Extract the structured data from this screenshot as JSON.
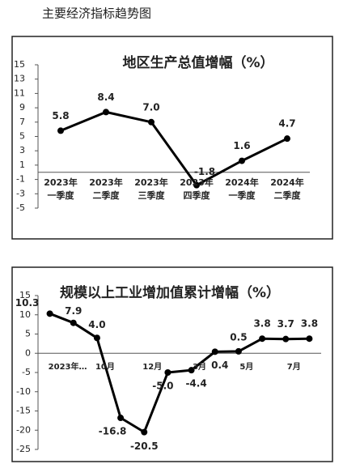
{
  "header": {
    "title": "主要经济指标趋势图"
  },
  "chart_data": [
    {
      "type": "line",
      "title": "地区生产总值增幅（%）",
      "categories": [
        [
          "2023年",
          "一季度"
        ],
        [
          "2023年",
          "二季度"
        ],
        [
          "2023年",
          "三季度"
        ],
        [
          "2023年",
          "四季度"
        ],
        [
          "2024年",
          "一季度"
        ],
        [
          "2024年",
          "二季度"
        ]
      ],
      "values": [
        5.8,
        8.4,
        7.0,
        -1.8,
        1.6,
        4.7
      ],
      "value_labels": [
        "5.8",
        "8.4",
        "7.0",
        "-1.8",
        "1.6",
        "4.7"
      ],
      "color": "#000000",
      "ylim": [
        -5,
        15
      ],
      "yticks": [
        15,
        13,
        11,
        9,
        7,
        5,
        3,
        1,
        -1,
        -3,
        -5
      ]
    },
    {
      "type": "line",
      "title": "规模以上工业增加值累计增幅（%）",
      "categories": [
        "2023年…",
        null,
        "10月",
        null,
        "12月",
        null,
        "3月",
        null,
        "5月",
        null,
        "7月",
        null
      ],
      "values": [
        10.3,
        7.9,
        4.0,
        -16.8,
        -20.5,
        -5.0,
        -4.4,
        0.4,
        0.5,
        3.8,
        3.7,
        3.8
      ],
      "value_labels": [
        "10.3",
        "7.9",
        "4.0",
        "-16.8",
        "-20.5",
        "-5.0",
        "-4.4",
        "0.4",
        "0.5",
        "3.8",
        "3.7",
        "3.8"
      ],
      "color": "#000000",
      "ylim": [
        -25,
        15
      ],
      "yticks": [
        15,
        10,
        5,
        0,
        -5,
        -10,
        -15,
        -20,
        -25
      ]
    }
  ]
}
